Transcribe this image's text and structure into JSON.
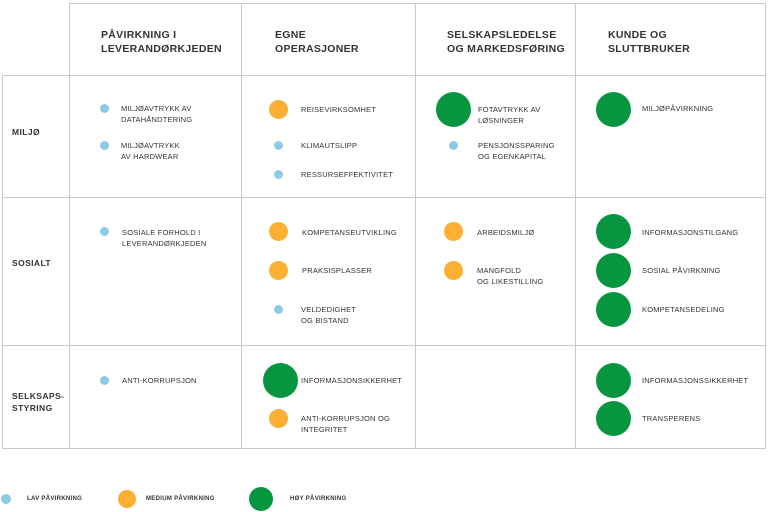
{
  "columns": [
    "PÅVIRKNING I\nLEVERANDØRKJEDEN",
    "EGNE\nOPERASJONER",
    "SELSKAPSLEDELSE\nOG MARKEDSFØRING",
    "KUNDE OG\nSLUTTBRUKER"
  ],
  "rows": [
    "MILJØ",
    "SOSIALT",
    "SELKSAPS-\nSTYRING"
  ],
  "items": {
    "miljo_lev_1": "MILJØAVTRYKK AV\nDATAHÅNDTERING",
    "miljo_lev_2": "MILJØAVTRYKK\nAV HARDWEAR",
    "miljo_egne_1": "REISEVIRKSOMHET",
    "miljo_egne_2": "KLIMAUTSLIPP",
    "miljo_egne_3": "RESSURSEFFEKTIVITET",
    "miljo_sel_1": "FOTAVTRYKK AV\nLØSNINGER",
    "miljo_sel_2": "PENSJONSSPARING\nOG EGENKAPITAL",
    "miljo_kunde_1": "MILJØPÅVIRKNING",
    "sosialt_lev_1": "SOSIALE FORHOLD I\nLEVERANDØRKJEDEN",
    "sosialt_egne_1": "KOMPETANSEUTVIKLING",
    "sosialt_egne_2": "PRAKSISPLASSER",
    "sosialt_egne_3": "VELDEDIGHET\nOG BISTAND",
    "sosialt_sel_1": "ARBEIDSMILJØ",
    "sosialt_sel_2": "MANGFOLD\nOG LIKESTILLING",
    "sosialt_kunde_1": "INFORMASJONSTILGANG",
    "sosialt_kunde_2": "SOSIAL PÅVIRKNING",
    "sosialt_kunde_3": "KOMPETANSEDELING",
    "styring_lev_1": "ANTI-KORRUPSJON",
    "styring_egne_1": "INFORMASJONSIKKERHET",
    "styring_egne_2": "ANTI-KORRUPSJON OG\nINTEGRITET",
    "styring_kunde_1": "INFORMASJONSSIKKERHET",
    "styring_kunde_2": "TRANSPERENS"
  },
  "legend": {
    "lav": "LAV PÅVIRKNING",
    "medium": "MEDIUM PÅVIRKNING",
    "hoy": "HØY PÅVIRKNING"
  },
  "colors": {
    "lav": "#8ecae6",
    "medium": "#fbb034",
    "hoy": "#07963f",
    "grid": "#c9c9c9"
  }
}
